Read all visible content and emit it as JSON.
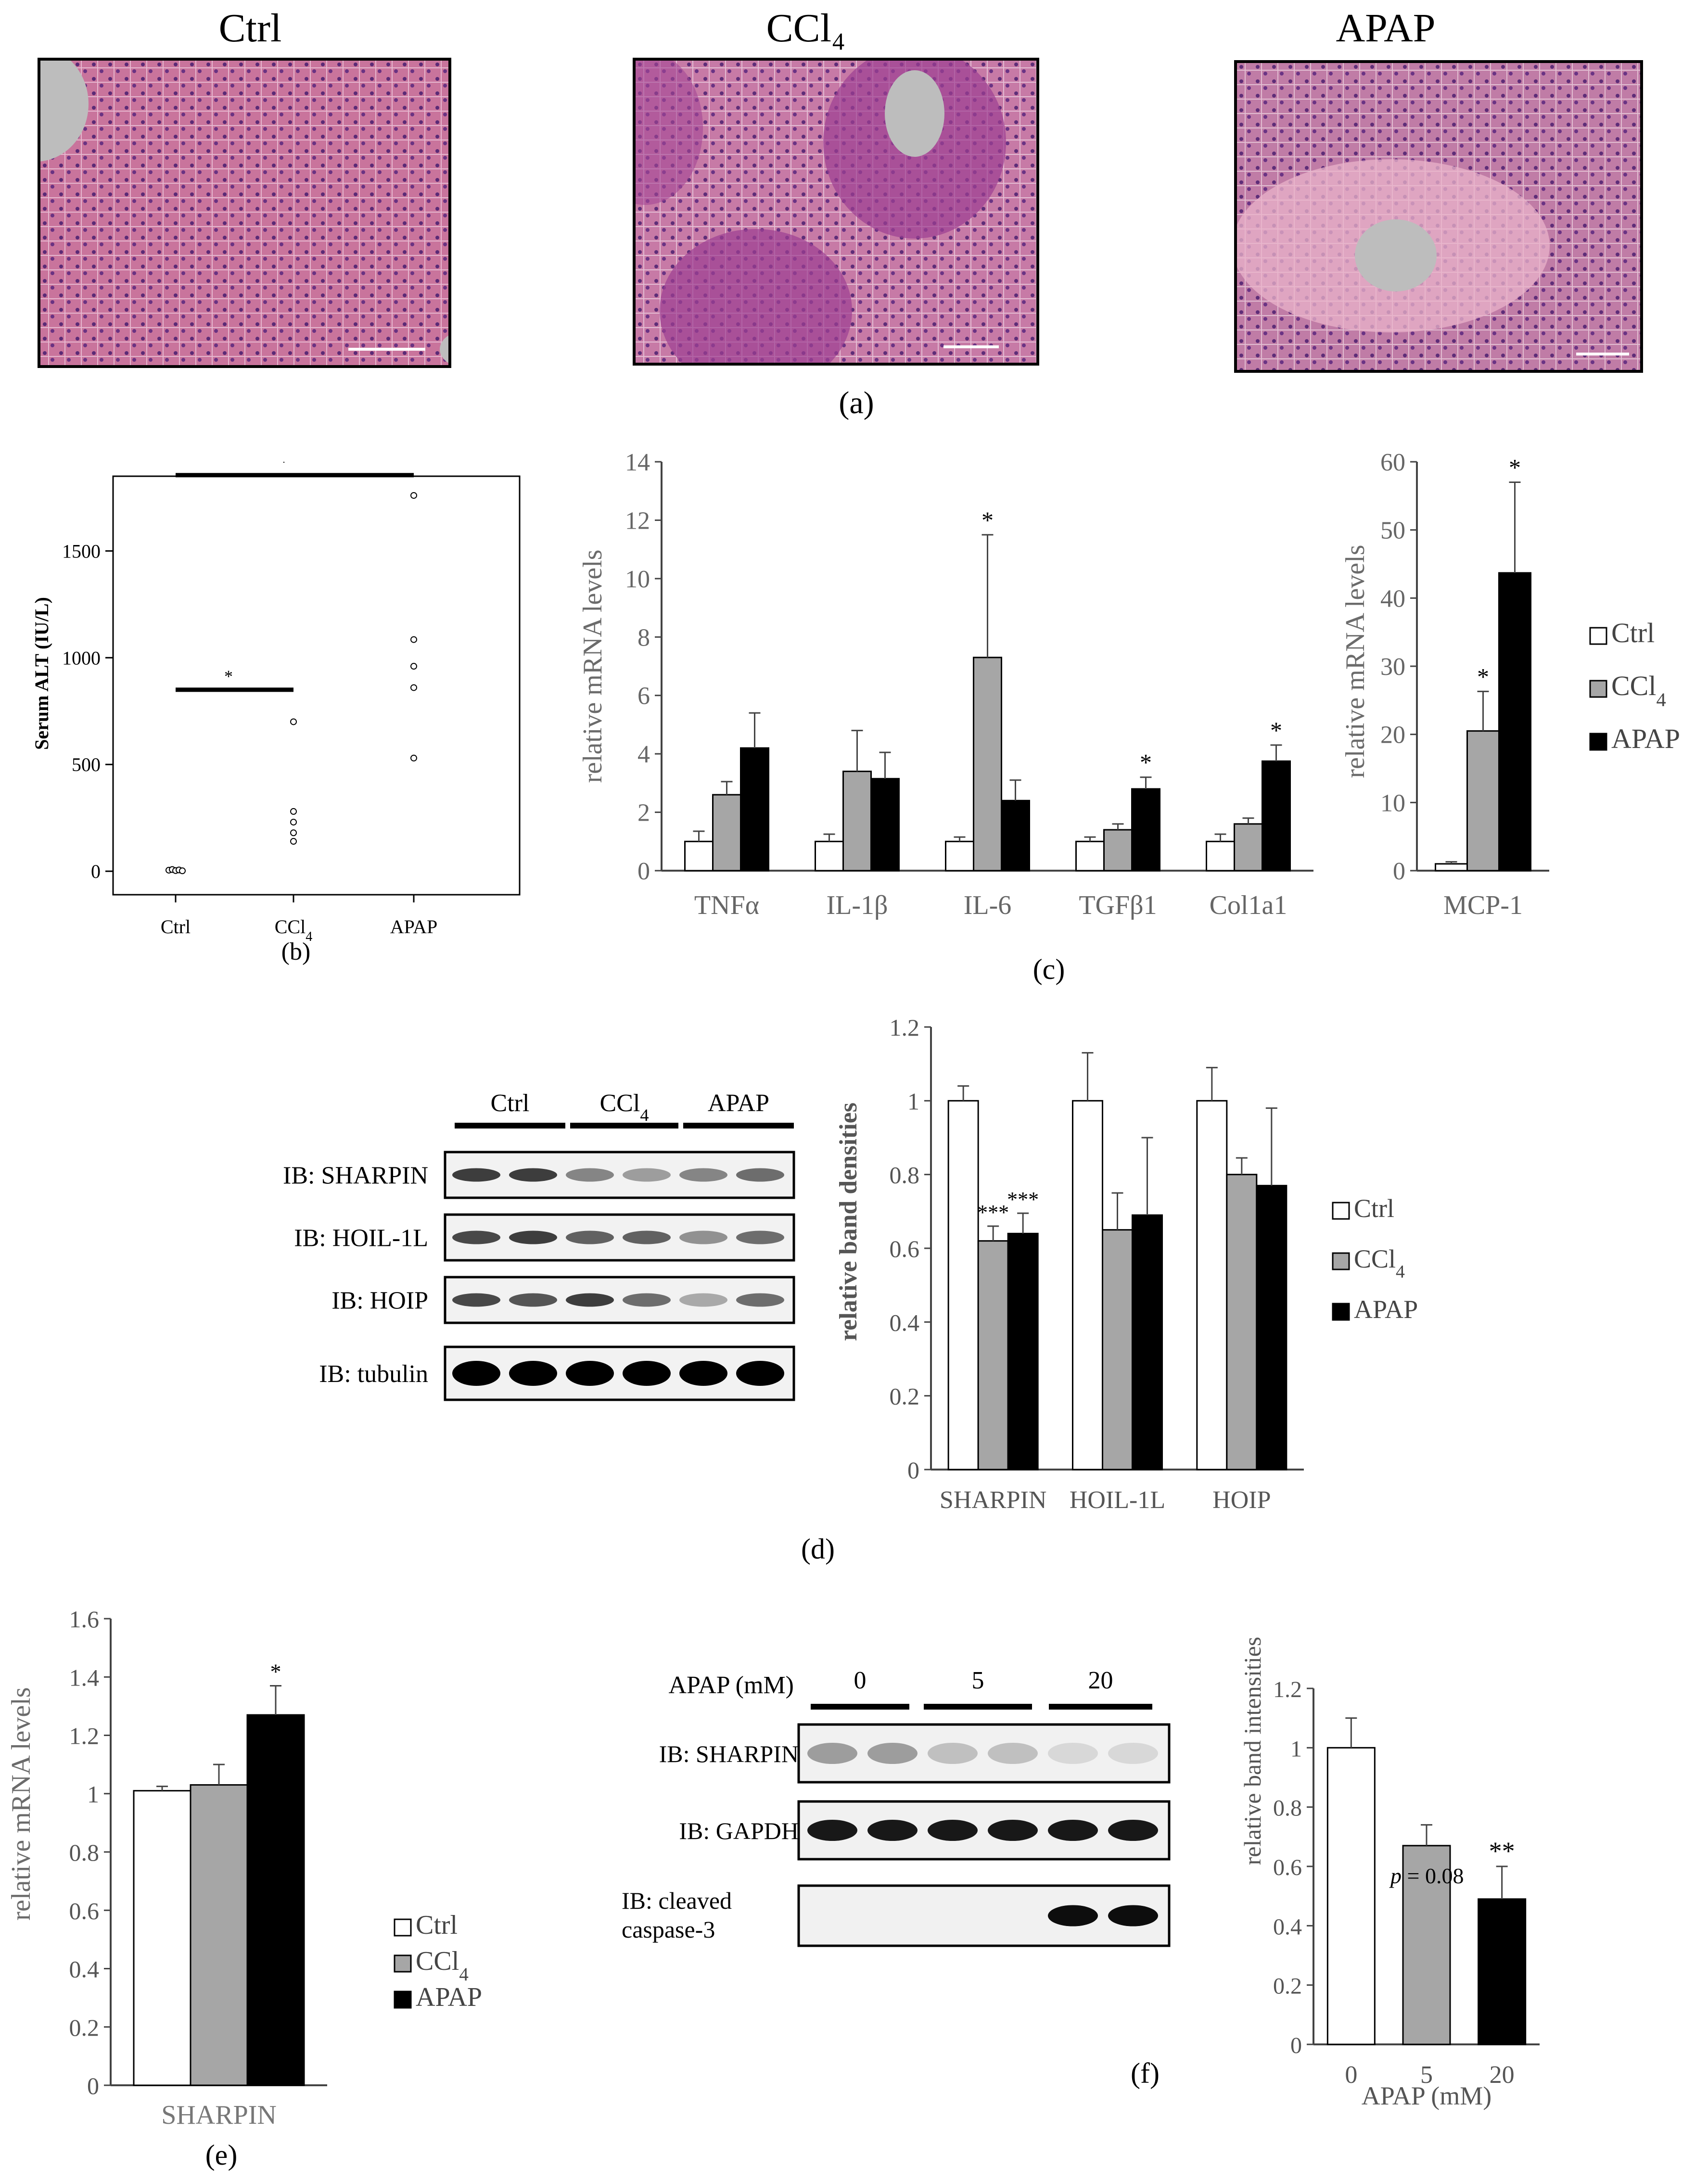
{
  "panel_a": {
    "label": "(a)",
    "titles": [
      "Ctrl",
      "CCl₄",
      "APAP"
    ]
  },
  "panel_b": {
    "label": "(b)",
    "ylabel": "Serum ALT (IU/L)",
    "yticks": [
      "0",
      "500",
      "1000",
      "1500"
    ],
    "categories": [
      "Ctrl",
      "CCl4",
      "APAP"
    ],
    "sig": [
      "*",
      "*"
    ]
  },
  "panel_c": {
    "label": "(c)",
    "ylabel": "relative mRNA levels",
    "legend": [
      "Ctrl",
      "CCl4",
      "APAP"
    ]
  },
  "panel_d": {
    "label": "(d)",
    "blot_groups": [
      "Ctrl",
      "CCl4",
      "APAP"
    ],
    "blot_rows": [
      "IB: SHARPIN",
      "IB: HOIL-1L",
      "IB: HOIP",
      "IB: tubulin"
    ],
    "ylabel": "relative band densities",
    "legend": [
      "Ctrl",
      "CCl4",
      "APAP"
    ]
  },
  "panel_e": {
    "label": "(e)",
    "ylabel": "relative mRNA levels",
    "legend": [
      "Ctrl",
      "CCl4",
      "APAP"
    ]
  },
  "panel_f": {
    "label": "(f)",
    "blot_header": "APAP (mM)",
    "blot_groups": [
      "0",
      "5",
      "20"
    ],
    "blot_rows": [
      "IB: SHARPIN",
      "IB: GAPDH",
      "IB: cleaved caspase-3"
    ],
    "ylabel": "relative band intensities",
    "xlabel": "APAP (mM)",
    "pvalue_italic": "p",
    "pvalue_rest": " = 0.08"
  },
  "chart_data": [
    {
      "id": "b",
      "type": "scatter",
      "categories": [
        "Ctrl",
        "CCl4",
        "APAP"
      ],
      "points": {
        "Ctrl": [
          5,
          8,
          3,
          6,
          2
        ],
        "CCl4": [
          700,
          280,
          230,
          180,
          140
        ],
        "APAP": [
          1760,
          1085,
          960,
          860,
          530
        ]
      },
      "ylabel": "Serum ALT (IU/L)",
      "ylim": [
        0,
        1850
      ],
      "sig_bars": [
        {
          "from": "Ctrl",
          "to": "CCl4",
          "label": "*"
        },
        {
          "from": "Ctrl",
          "to": "APAP",
          "label": "*"
        }
      ]
    },
    {
      "id": "c_left",
      "type": "bar",
      "categories": [
        "TNFα",
        "IL-1β",
        "IL-6",
        "TGFβ1",
        "Col1a1"
      ],
      "series": [
        {
          "name": "Ctrl",
          "values": [
            1.0,
            1.0,
            1.0,
            1.0,
            1.0
          ],
          "errors": [
            0.35,
            0.25,
            0.15,
            0.15,
            0.25
          ],
          "color": "#ffffff"
        },
        {
          "name": "CCl4",
          "values": [
            2.6,
            3.4,
            7.3,
            1.4,
            1.6
          ],
          "errors": [
            0.45,
            1.4,
            4.2,
            0.2,
            0.2
          ],
          "color": "#a6a6a6"
        },
        {
          "name": "APAP",
          "values": [
            4.2,
            3.15,
            2.4,
            2.8,
            3.75
          ],
          "errors": [
            1.2,
            0.9,
            0.7,
            0.4,
            0.55
          ],
          "color": "#000000"
        }
      ],
      "sig": [
        [
          "",
          "",
          ""
        ],
        [
          "",
          "",
          ""
        ],
        [
          "",
          "*",
          ""
        ],
        [
          "",
          "",
          "*"
        ],
        [
          "",
          "",
          "*"
        ]
      ],
      "ylabel": "relative mRNA levels",
      "ylim": [
        0,
        14
      ],
      "yticks": [
        0,
        2,
        4,
        6,
        8,
        10,
        12,
        14
      ]
    },
    {
      "id": "c_right",
      "type": "bar",
      "categories": [
        "MCP-1"
      ],
      "series": [
        {
          "name": "Ctrl",
          "values": [
            1.0
          ],
          "errors": [
            0.3
          ],
          "color": "#ffffff"
        },
        {
          "name": "CCl4",
          "values": [
            20.5
          ],
          "errors": [
            5.8
          ],
          "color": "#a6a6a6"
        },
        {
          "name": "APAP",
          "values": [
            43.7
          ],
          "errors": [
            13.3
          ],
          "color": "#000000"
        }
      ],
      "sig": [
        [
          "",
          "*",
          "*"
        ]
      ],
      "ylabel": "relative mRNA levels",
      "ylim": [
        0,
        60
      ],
      "yticks": [
        0,
        10,
        20,
        30,
        40,
        50,
        60
      ]
    },
    {
      "id": "d",
      "type": "bar",
      "categories": [
        "SHARPIN",
        "HOIL-1L",
        "HOIP"
      ],
      "series": [
        {
          "name": "Ctrl",
          "values": [
            1.0,
            1.0,
            1.0
          ],
          "errors": [
            0.04,
            0.13,
            0.09
          ],
          "color": "#ffffff"
        },
        {
          "name": "CCl4",
          "values": [
            0.62,
            0.65,
            0.8
          ],
          "errors": [
            0.04,
            0.1,
            0.045
          ],
          "color": "#a6a6a6"
        },
        {
          "name": "APAP",
          "values": [
            0.64,
            0.69,
            0.77
          ],
          "errors": [
            0.055,
            0.21,
            0.21
          ],
          "color": "#000000"
        }
      ],
      "sig": [
        [
          "",
          "***",
          "***"
        ],
        [
          "",
          "",
          ""
        ],
        [
          "",
          "",
          ""
        ]
      ],
      "ylabel": "relative band densities",
      "ylim": [
        0,
        1.2
      ],
      "yticks": [
        0,
        0.2,
        0.4,
        0.6,
        0.8,
        1,
        1.2
      ]
    },
    {
      "id": "e",
      "type": "bar",
      "categories": [
        "SHARPIN"
      ],
      "series": [
        {
          "name": "Ctrl",
          "values": [
            1.01
          ],
          "errors": [
            0.015
          ],
          "color": "#ffffff"
        },
        {
          "name": "CCl4",
          "values": [
            1.03
          ],
          "errors": [
            0.07
          ],
          "color": "#a6a6a6"
        },
        {
          "name": "APAP",
          "values": [
            1.27
          ],
          "errors": [
            0.1
          ],
          "color": "#000000"
        }
      ],
      "sig": [
        [
          "",
          "",
          "*"
        ]
      ],
      "ylabel": "relative mRNA levels",
      "ylim": [
        0,
        1.6
      ],
      "yticks": [
        0,
        0.2,
        0.4,
        0.6,
        0.8,
        1,
        1.2,
        1.4,
        1.6
      ]
    },
    {
      "id": "f",
      "type": "bar",
      "categories": [
        "0",
        "5",
        "20"
      ],
      "values": [
        1.0,
        0.67,
        0.49
      ],
      "errors": [
        0.1,
        0.07,
        0.11
      ],
      "colors": [
        "#ffffff",
        "#a6a6a6",
        "#000000"
      ],
      "sig": [
        "",
        "",
        "**"
      ],
      "ylabel": "relative band intensities",
      "xlabel": "APAP (mM)",
      "ylim": [
        0,
        1.2
      ],
      "yticks": [
        0,
        0.2,
        0.4,
        0.6,
        0.8,
        1,
        1.2
      ]
    }
  ]
}
